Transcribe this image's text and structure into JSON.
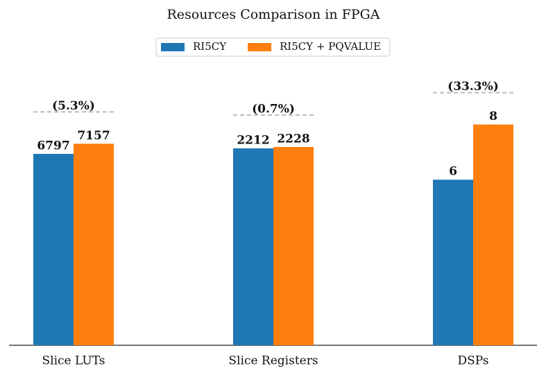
{
  "chart_data": {
    "type": "bar",
    "title": "Resources Comparison in FPGA",
    "categories": [
      "Slice LUTs",
      "Slice Registers",
      "DSPs"
    ],
    "series": [
      {
        "name": "RI5CY",
        "color": "#1f77b4",
        "values": [
          6797,
          2212,
          6
        ]
      },
      {
        "name": "RI5CY + PQVALUE",
        "color": "#ff7f0e",
        "values": [
          7157,
          2228,
          8
        ]
      }
    ],
    "group_ylims": [
      [
        0,
        9800
      ],
      [
        0,
        3100
      ],
      [
        0,
        10
      ]
    ],
    "annotations": [
      {
        "value": 5.3,
        "label": "(5.3%)"
      },
      {
        "value": 0.7,
        "label": "(0.7%)"
      },
      {
        "value": 33.3,
        "label": "(33.3%)"
      }
    ],
    "legend": "upper center"
  }
}
